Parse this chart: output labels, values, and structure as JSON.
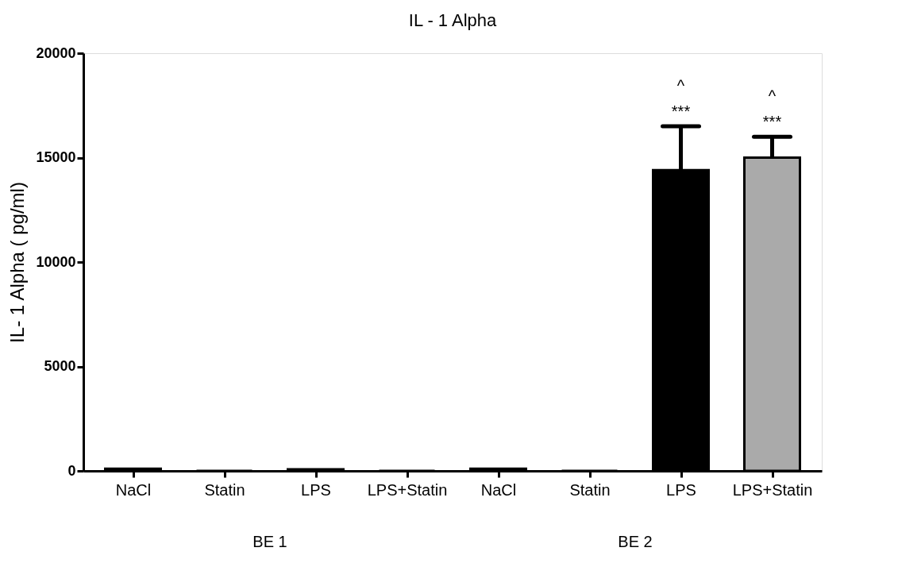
{
  "chart_data": {
    "type": "bar",
    "title": "IL - 1 Alpha",
    "ylabel": "IL- 1 Alpha ( pg/ml)",
    "categories": [
      "NaCl",
      "Statin",
      "LPS",
      "LPS+Statin",
      "NaCl",
      "Statin",
      "LPS",
      "LPS+Statin"
    ],
    "values": [
      100,
      0,
      80,
      0,
      100,
      0,
      14400,
      15000
    ],
    "errors": [
      null,
      null,
      null,
      null,
      null,
      null,
      2100,
      1000
    ],
    "colors": [
      "#000000",
      "#000000",
      "#000000",
      "#000000",
      "#000000",
      "#000000",
      "#000000",
      "#aaaaaa"
    ],
    "value_labels": [
      null,
      null,
      null,
      null,
      null,
      null,
      "^\n***",
      "^\n***"
    ],
    "ylim": [
      0,
      20000
    ],
    "yticks": [
      0,
      5000,
      10000,
      15000,
      20000
    ],
    "grid": false,
    "annotations": [
      "BE 1",
      "BE 2"
    ]
  }
}
